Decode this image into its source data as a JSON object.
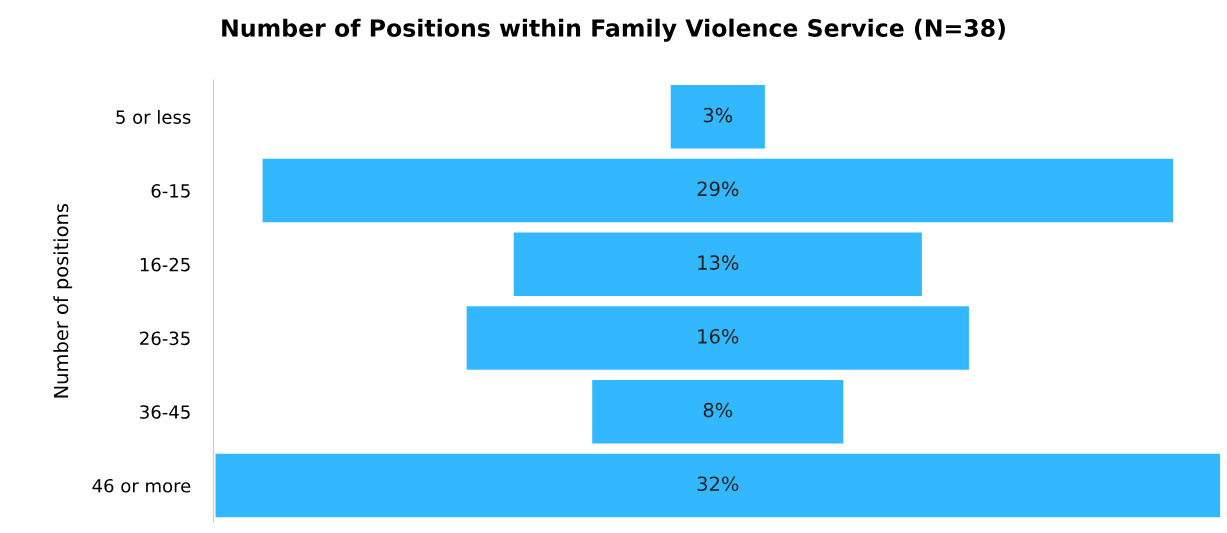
{
  "chart_data": {
    "type": "other",
    "title": "Number of Positions within Family Violence Service (N=38)",
    "ylabel": "Number of positions",
    "categories": [
      "5 or less",
      "6-15",
      "16-25",
      "26-35",
      "36-45",
      "46 or more"
    ],
    "values": [
      3,
      29,
      13,
      16,
      8,
      32
    ],
    "value_labels": [
      "3%",
      "29%",
      "13%",
      "16%",
      "8%",
      "32%"
    ],
    "color": "#33b8ff"
  }
}
